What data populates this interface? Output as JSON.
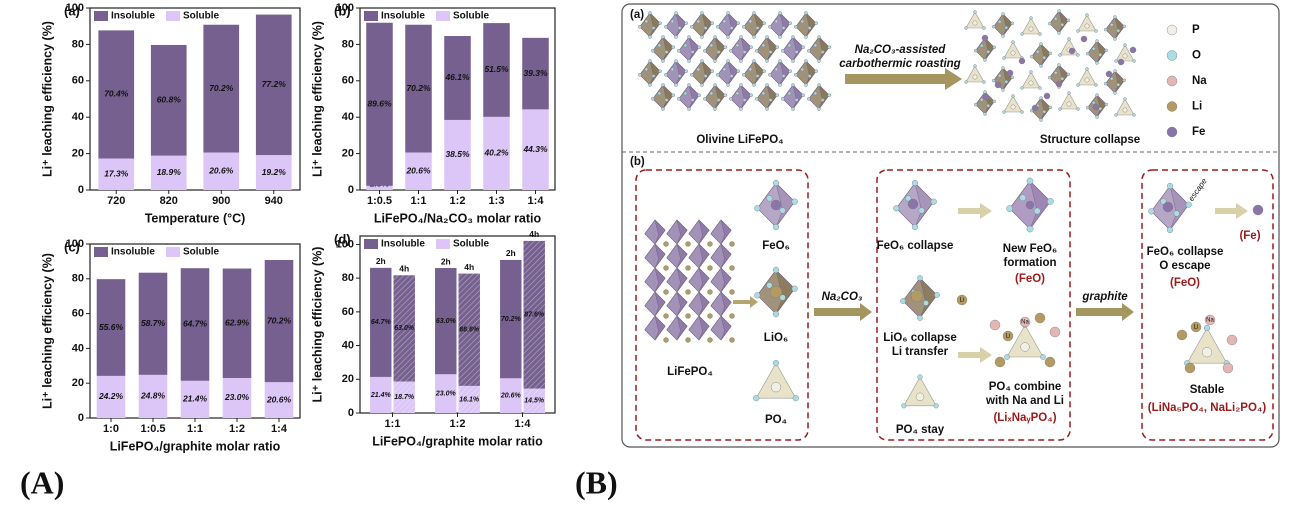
{
  "panel_labels": [
    "(A)",
    "(B)"
  ],
  "chart_data": [
    {
      "type": "stacked_bar",
      "title": "(a)",
      "xlabel": "Temperature (°C)",
      "ylabel": "Li⁺ leaching efficiency (%)",
      "categories": [
        "720",
        "820",
        "900",
        "940"
      ],
      "series": [
        {
          "name": "Insoluble",
          "color": "#76608f",
          "values": [
            70.4,
            60.8,
            70.2,
            77.2
          ],
          "value_labels": [
            "70.4%",
            "60.8%",
            "70.2%",
            "77.2%"
          ]
        },
        {
          "name": "Soluble",
          "color": "#dcc6f7",
          "values": [
            17.3,
            18.9,
            20.6,
            19.2
          ],
          "value_labels": [
            "17.3%",
            "18.9%",
            "20.6%",
            "19.2%"
          ]
        }
      ],
      "ylim": [
        0,
        100
      ],
      "yticks": [
        0,
        20,
        40,
        60,
        80,
        100
      ],
      "legend": "top-left"
    },
    {
      "type": "stacked_bar",
      "title": "(b)",
      "xlabel": "LiFePO₄/Na₂CO₃ molar ratio",
      "ylabel": "Li⁺ leaching efficiency (%)",
      "categories": [
        "1:0.5",
        "1:1",
        "1:2",
        "1:3",
        "1:4"
      ],
      "series": [
        {
          "name": "Insoluble",
          "color": "#76608f",
          "values": [
            89.6,
            70.2,
            46.1,
            51.5,
            39.3
          ],
          "value_labels": [
            "89.6%",
            "70.2%",
            "46.1%",
            "51.5%",
            "39.3%"
          ]
        },
        {
          "name": "Soluble",
          "color": "#dcc6f7",
          "values": [
            2.3,
            20.6,
            38.5,
            40.2,
            44.3
          ],
          "value_labels": [
            "2.3%",
            "20.6%",
            "38.5%",
            "40.2%",
            "44.3%"
          ]
        }
      ],
      "ylim": [
        0,
        100
      ],
      "yticks": [
        0,
        20,
        40,
        60,
        80,
        100
      ],
      "legend": "top-left"
    },
    {
      "type": "stacked_bar",
      "title": "(c)",
      "xlabel": "LiFePO₄/graphite molar ratio",
      "ylabel": "Li⁺ leaching efficiency (%)",
      "categories": [
        "1:0",
        "1:0.5",
        "1:1",
        "1:2",
        "1:4"
      ],
      "series": [
        {
          "name": "Insoluble",
          "color": "#76608f",
          "values": [
            55.6,
            58.7,
            64.7,
            62.9,
            70.2
          ],
          "value_labels": [
            "55.6%",
            "58.7%",
            "64.7%",
            "62.9%",
            "70.2%"
          ]
        },
        {
          "name": "Soluble",
          "color": "#dcc6f7",
          "values": [
            24.2,
            24.8,
            21.4,
            23.0,
            20.6
          ],
          "value_labels": [
            "24.2%",
            "24.8%",
            "21.4%",
            "23.0%",
            "20.6%"
          ]
        }
      ],
      "ylim": [
        0,
        100
      ],
      "yticks": [
        0,
        20,
        40,
        60,
        80,
        100
      ],
      "legend": "top-left"
    },
    {
      "type": "grouped_stacked_bar",
      "title": "(d)",
      "xlabel": "LiFePO₄/graphite molar ratio",
      "ylabel": "Li⁺ leaching efficiency (%)",
      "categories": [
        "1:1",
        "1:2",
        "1:4"
      ],
      "subgroups": [
        "2h",
        "4h"
      ],
      "series": [
        {
          "name": "Insoluble",
          "color": "#76608f",
          "values": [
            [
              64.7,
              63.0
            ],
            [
              63.0,
              66.6
            ],
            [
              70.2,
              87.6
            ]
          ],
          "value_labels": [
            [
              "64.7%",
              "63.0%"
            ],
            [
              "63.0%",
              "66.6%"
            ],
            [
              "70.2%",
              "87.6%"
            ]
          ]
        },
        {
          "name": "Soluble",
          "color": "#dcc6f7",
          "values": [
            [
              21.4,
              18.7
            ],
            [
              23.0,
              16.1
            ],
            [
              20.6,
              14.5
            ]
          ],
          "value_labels": [
            [
              "21.4%",
              "18.7%"
            ],
            [
              "23.0%",
              "16.1%"
            ],
            [
              "20.6%",
              "14.5%"
            ]
          ]
        }
      ],
      "ylim": [
        0,
        105
      ],
      "yticks": [
        0,
        20,
        40,
        60,
        80,
        100
      ],
      "legend": "top-left"
    }
  ],
  "diagram": {
    "a": {
      "label": "(a)",
      "arrow_text": [
        "Na₂CO₃-assisted",
        "carbothermic roasting"
      ],
      "left_caption": "Olivine LiFePO₄",
      "right_caption": "Structure collapse",
      "legend": [
        {
          "name": "P",
          "color": "#f1efe6"
        },
        {
          "name": "O",
          "color": "#a9dde6"
        },
        {
          "name": "Na",
          "color": "#e3b5b5"
        },
        {
          "name": "Li",
          "color": "#b39a62"
        },
        {
          "name": "Fe",
          "color": "#8b74a8"
        }
      ]
    },
    "b": {
      "label": "(b)",
      "lattice": "LiFePO₄",
      "feo6": "FeO₆",
      "lio6": "LiO₆",
      "po4": "PO₄",
      "arrow1": "Na₂CO₃",
      "arrow2": "graphite",
      "feo6_collapse": "FeO₆ collapse",
      "new_feo6": [
        "New FeO₆",
        "formation"
      ],
      "feo": "(FeO)",
      "lio6_collapse": [
        "LiO₆ collapse",
        "Li transfer"
      ],
      "po4_combine": [
        "PO₄ combine",
        "with Na and Li"
      ],
      "lixnay": "(LiₓNaᵧPO₄)",
      "po4_stay": "PO₄ stay",
      "final_collapse": [
        "FeO₆ collapse",
        "O escape"
      ],
      "final_feo": "(FeO)",
      "fe": "(Fe)",
      "escape": "escape",
      "stable": "Stable",
      "stable_products": "(LiNa₅PO₄, NaLi₂PO₄)",
      "li": "Li",
      "na": "Na"
    }
  }
}
